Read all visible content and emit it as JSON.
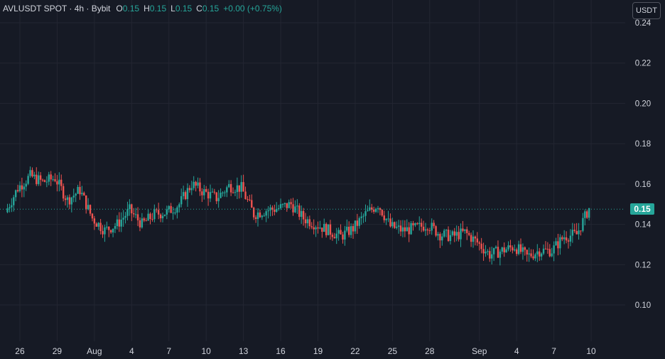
{
  "legend": {
    "symbol": "AVLUSDT SPOT · 4h · Bybit",
    "open_key": "O",
    "open_val": "0.15",
    "high_key": "H",
    "high_val": "0.15",
    "low_key": "L",
    "low_val": "0.15",
    "close_key": "C",
    "close_val": "0.15",
    "change": "+0.00 (+0.75%)"
  },
  "currency_button": "USDT",
  "last_price_label": "0.15",
  "colors": {
    "background": "#161a25",
    "grid": "#232632",
    "up": "#26a69a",
    "down": "#ef5350",
    "text": "#d1d4dc",
    "price_line": "#26a69a"
  },
  "chart_data": {
    "type": "candlestick",
    "y_ticks": [
      "0.10",
      "0.12",
      "0.14",
      "0.16",
      "0.18",
      "0.20",
      "0.22",
      "0.24"
    ],
    "x_ticks": [
      "26",
      "29",
      "Aug",
      "4",
      "7",
      "10",
      "13",
      "16",
      "19",
      "22",
      "25",
      "28",
      "Sep",
      "4",
      "7",
      "10"
    ],
    "ylim": [
      0.085,
      0.244
    ],
    "last_price": 0.1475,
    "grid": true,
    "series_close_by_day": [
      {
        "x": "Jul 25",
        "close": 0.146
      },
      {
        "x": "Jul 26",
        "close": 0.158
      },
      {
        "x": "Jul 27",
        "close": 0.164
      },
      {
        "x": "Jul 28",
        "close": 0.161
      },
      {
        "x": "Jul 29",
        "close": 0.163
      },
      {
        "x": "Jul 30",
        "close": 0.152
      },
      {
        "x": "Jul 31",
        "close": 0.157
      },
      {
        "x": "Aug 1",
        "close": 0.143
      },
      {
        "x": "Aug 2",
        "close": 0.137
      },
      {
        "x": "Aug 3",
        "close": 0.14
      },
      {
        "x": "Aug 4",
        "close": 0.147
      },
      {
        "x": "Aug 5",
        "close": 0.14
      },
      {
        "x": "Aug 6",
        "close": 0.145
      },
      {
        "x": "Aug 7",
        "close": 0.146
      },
      {
        "x": "Aug 8",
        "close": 0.15
      },
      {
        "x": "Aug 9",
        "close": 0.16
      },
      {
        "x": "Aug 10",
        "close": 0.156
      },
      {
        "x": "Aug 11",
        "close": 0.153
      },
      {
        "x": "Aug 12",
        "close": 0.159
      },
      {
        "x": "Aug 13",
        "close": 0.158
      },
      {
        "x": "Aug 14",
        "close": 0.145
      },
      {
        "x": "Aug 15",
        "close": 0.147
      },
      {
        "x": "Aug 16",
        "close": 0.148
      },
      {
        "x": "Aug 17",
        "close": 0.15
      },
      {
        "x": "Aug 18",
        "close": 0.143
      },
      {
        "x": "Aug 19",
        "close": 0.14
      },
      {
        "x": "Aug 20",
        "close": 0.137
      },
      {
        "x": "Aug 21",
        "close": 0.134
      },
      {
        "x": "Aug 22",
        "close": 0.138
      },
      {
        "x": "Aug 23",
        "close": 0.145
      },
      {
        "x": "Aug 24",
        "close": 0.15
      },
      {
        "x": "Aug 25",
        "close": 0.139
      },
      {
        "x": "Aug 26",
        "close": 0.137
      },
      {
        "x": "Aug 27",
        "close": 0.138
      },
      {
        "x": "Aug 28",
        "close": 0.14
      },
      {
        "x": "Aug 29",
        "close": 0.135
      },
      {
        "x": "Aug 30",
        "close": 0.134
      },
      {
        "x": "Aug 31",
        "close": 0.136
      },
      {
        "x": "Sep 1",
        "close": 0.131
      },
      {
        "x": "Sep 2",
        "close": 0.125
      },
      {
        "x": "Sep 3",
        "close": 0.127
      },
      {
        "x": "Sep 4",
        "close": 0.129
      },
      {
        "x": "Sep 5",
        "close": 0.124
      },
      {
        "x": "Sep 6",
        "close": 0.127
      },
      {
        "x": "Sep 7",
        "close": 0.127
      },
      {
        "x": "Sep 8",
        "close": 0.134
      },
      {
        "x": "Sep 9",
        "close": 0.135
      },
      {
        "x": "Sep 10",
        "close": 0.148
      }
    ]
  }
}
